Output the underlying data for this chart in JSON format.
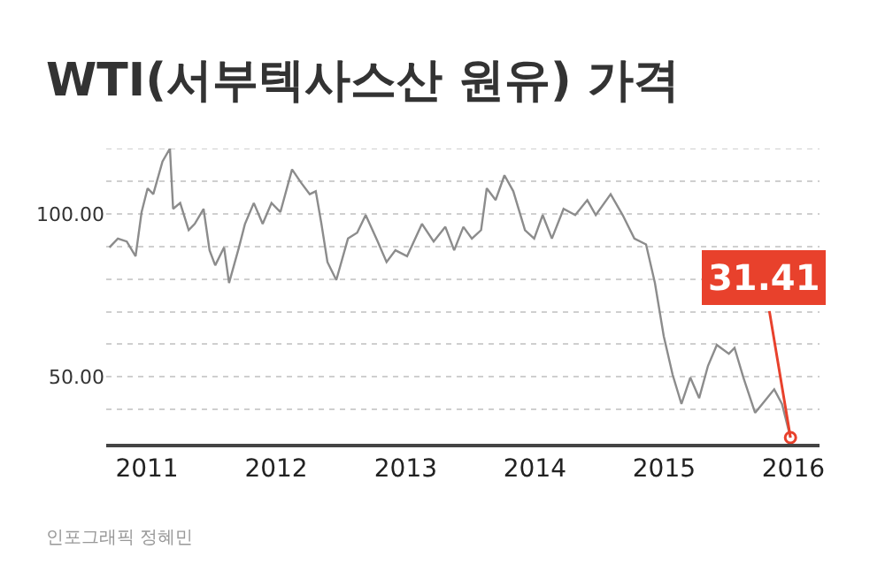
{
  "chart_data": {
    "type": "line",
    "title": "WTI(서부텍사스산 원유) 가격",
    "x": [
      "2010-09-17",
      "2010-10-11",
      "2010-11-05",
      "2010-11-30",
      "2010-12-17",
      "2011-01-03",
      "2011-01-19",
      "2011-02-14",
      "2011-03-07",
      "2011-03-16",
      "2011-04-05",
      "2011-04-29",
      "2011-05-16",
      "2011-06-10",
      "2011-06-27",
      "2011-07-13",
      "2011-08-07",
      "2011-08-21",
      "2011-09-18",
      "2011-10-05",
      "2011-10-30",
      "2011-11-24",
      "2011-12-19",
      "2012-01-13",
      "2012-02-15",
      "2012-03-11",
      "2012-04-05",
      "2012-04-22",
      "2012-05-08",
      "2012-05-25",
      "2012-06-19",
      "2012-07-22",
      "2012-08-17",
      "2012-09-10",
      "2012-10-14",
      "2012-11-08",
      "2012-12-03",
      "2013-01-05",
      "2013-02-16",
      "2013-03-21",
      "2013-04-23",
      "2013-05-18",
      "2013-06-13",
      "2013-07-07",
      "2013-08-02",
      "2013-08-18",
      "2013-09-12",
      "2013-10-07",
      "2013-11-01",
      "2013-12-04",
      "2013-12-30",
      "2014-01-23",
      "2014-02-18",
      "2014-03-23",
      "2014-04-25",
      "2014-05-29",
      "2014-06-22",
      "2014-08-03",
      "2014-09-06",
      "2014-10-09",
      "2014-11-11",
      "2014-12-06",
      "2014-12-31",
      "2015-01-25",
      "2015-02-19",
      "2015-03-16",
      "2015-04-10",
      "2015-05-05",
      "2015-05-30",
      "2015-07-03",
      "2015-07-19",
      "2015-08-13",
      "2015-09-15",
      "2015-10-19",
      "2015-11-08",
      "2015-11-30",
      "2015-12-24"
    ],
    "series": [
      {
        "color": "#8c8c8c",
        "values": [
          89.7,
          92.4,
          91.5,
          87,
          100.5,
          107.8,
          106,
          116,
          120,
          101.5,
          103.3,
          95,
          96.9,
          101.5,
          88.8,
          84.2,
          89.7,
          78.8,
          89.7,
          96.9,
          103.3,
          96.9,
          103.3,
          100.5,
          113.6,
          109.6,
          106,
          106.9,
          96.9,
          85.2,
          79.7,
          92.4,
          94.2,
          99.6,
          91.5,
          85.2,
          88.8,
          87,
          96.9,
          91.5,
          96,
          88.8,
          96,
          92.4,
          95,
          107.8,
          104.2,
          111.8,
          106.9,
          95,
          92.4,
          99.6,
          92.4,
          101.5,
          99.6,
          104.2,
          99.6,
          106,
          99.6,
          92.4,
          90.6,
          78.8,
          62.5,
          50.7,
          41.7,
          49.8,
          43.5,
          53.4,
          59.8,
          57.1,
          58.9,
          49.8,
          39,
          43.5,
          46.2,
          41.7,
          31.41
        ]
      }
    ],
    "xlim": [
      "2010-09-08",
      "2016-03-15"
    ],
    "xticks": [
      "2011",
      "2012",
      "2013",
      "2014",
      "2015",
      "2016"
    ],
    "ylim": [
      29.5,
      120
    ],
    "yticks": [
      {
        "value": 40,
        "label": null
      },
      {
        "value": 50,
        "label": "50.00"
      },
      {
        "value": 60,
        "label": null
      },
      {
        "value": 70,
        "label": null
      },
      {
        "value": 80,
        "label": null
      },
      {
        "value": 90,
        "label": null
      },
      {
        "value": 100,
        "label": "100.00"
      },
      {
        "value": 110,
        "label": null
      },
      {
        "value": 120,
        "label": null
      }
    ],
    "grid": "y",
    "marker": "none",
    "line_style": "solid",
    "annotations": [
      {
        "text": "31.41",
        "x": "2015-12-24",
        "y": 31.41
      },
      "인포그래픽 정혜민"
    ]
  }
}
